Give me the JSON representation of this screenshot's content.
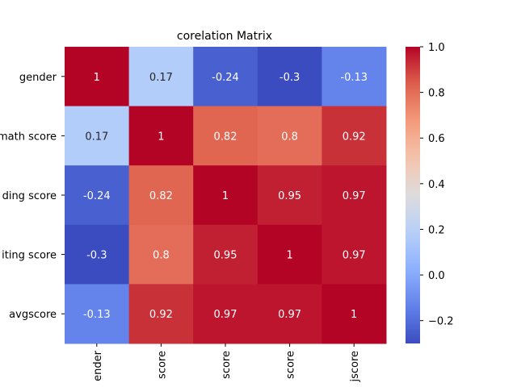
{
  "chart_data": {
    "type": "heatmap",
    "title": "corelation Matrix",
    "row_labels": [
      "gender",
      "math score",
      "reading score",
      "writing score",
      "avgscore"
    ],
    "col_labels": [
      "gender",
      "math score",
      "reading score",
      "writing score",
      "avgscore"
    ],
    "row_labels_visible": [
      "gender",
      "math score",
      "ding score",
      "iting score",
      "avgscore"
    ],
    "col_labels_visible": [
      "ender",
      "score",
      "score",
      "score",
      "jscore"
    ],
    "matrix": [
      [
        1,
        0.17,
        -0.24,
        -0.3,
        -0.13
      ],
      [
        0.17,
        1,
        0.82,
        0.8,
        0.92
      ],
      [
        -0.24,
        0.82,
        1,
        0.95,
        0.97
      ],
      [
        -0.3,
        0.8,
        0.95,
        1,
        0.97
      ],
      [
        -0.13,
        0.92,
        0.97,
        0.97,
        1
      ]
    ],
    "annotations": [
      [
        "1",
        "0.17",
        "-0.24",
        "-0.3",
        "-0.13"
      ],
      [
        "0.17",
        "1",
        "0.82",
        "0.8",
        "0.92"
      ],
      [
        "-0.24",
        "0.82",
        "1",
        "0.95",
        "0.97"
      ],
      [
        "-0.3",
        "0.8",
        "0.95",
        "1",
        "0.97"
      ],
      [
        "-0.13",
        "0.92",
        "0.97",
        "0.97",
        "1"
      ]
    ],
    "colormap": "coolwarm",
    "vmin": -0.3,
    "vmax": 1.0,
    "colorbar_ticks": [
      1.0,
      0.8,
      0.6,
      0.4,
      0.2,
      0.0,
      -0.2
    ],
    "colorbar_tick_labels": [
      "1.0",
      "0.8",
      "0.6",
      "0.4",
      "0.2",
      "0.0",
      "−0.2"
    ],
    "colors": {
      "coolwarm_low": "#3b4cc0",
      "coolwarm_mid": "#dddcdc",
      "coolwarm_high": "#b40426",
      "text_light": "#ffffff",
      "text_dark": "#262626"
    }
  }
}
